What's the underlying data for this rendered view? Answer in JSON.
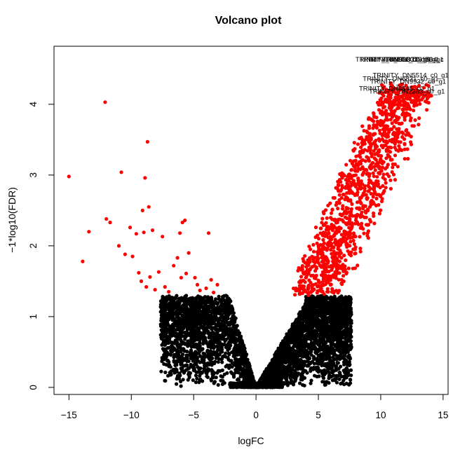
{
  "chart_data": {
    "type": "scatter",
    "title": "Volcano plot",
    "xlabel": "logFC",
    "ylabel": "−1*log10(FDR)",
    "xlim": [
      -16.2,
      15.4
    ],
    "ylim": [
      -0.1,
      4.82
    ],
    "x_ticks": [
      -15,
      -10,
      -5,
      0,
      5,
      10,
      15
    ],
    "y_ticks": [
      0,
      1,
      2,
      3,
      4
    ],
    "grid": false,
    "legend": "none",
    "colors": {
      "significant": "#ff0000",
      "not_significant": "#000000"
    },
    "fdr_threshold_y": 1.3,
    "series": [
      {
        "color": "#ff0000",
        "points": [
          [
            -15.0,
            2.98
          ],
          [
            -13.9,
            1.78
          ],
          [
            -13.4,
            2.2
          ],
          [
            -12.1,
            4.03
          ],
          [
            -12.0,
            2.38
          ],
          [
            -11.7,
            2.33
          ],
          [
            -11.0,
            2.0
          ],
          [
            -10.8,
            3.04
          ],
          [
            -10.5,
            1.88
          ],
          [
            -10.1,
            2.26
          ],
          [
            -9.9,
            1.85
          ],
          [
            -9.6,
            2.17
          ],
          [
            -9.4,
            1.62
          ],
          [
            -9.2,
            1.5
          ],
          [
            -9.1,
            2.5
          ],
          [
            -9.0,
            2.19
          ],
          [
            -8.9,
            2.96
          ],
          [
            -8.8,
            1.42
          ],
          [
            -8.7,
            3.47
          ],
          [
            -8.6,
            2.55
          ],
          [
            -8.5,
            1.56
          ],
          [
            -8.3,
            2.22
          ],
          [
            -8.1,
            1.38
          ],
          [
            -7.8,
            1.63
          ],
          [
            -7.5,
            2.13
          ],
          [
            -7.3,
            1.42
          ],
          [
            -7.0,
            1.35
          ],
          [
            -6.6,
            1.72
          ],
          [
            -6.3,
            1.83
          ],
          [
            -6.1,
            2.18
          ],
          [
            -6.0,
            1.55
          ],
          [
            -5.9,
            2.33
          ],
          [
            -5.7,
            2.36
          ],
          [
            -5.6,
            1.61
          ],
          [
            -5.4,
            1.9
          ],
          [
            -4.9,
            1.55
          ],
          [
            -4.7,
            1.45
          ],
          [
            -4.5,
            1.37
          ],
          [
            -4.0,
            1.4
          ],
          [
            -3.8,
            2.18
          ],
          [
            -3.6,
            1.52
          ],
          [
            -3.4,
            1.34
          ],
          [
            -3.1,
            1.45
          ]
        ]
      },
      {
        "color": "#000000",
        "points": []
      }
    ],
    "point_labels": [
      {
        "x": 12.0,
        "y": 4.63,
        "text": "TRINITY_DN3312_c0_g1"
      },
      {
        "x": 11.5,
        "y": 4.63,
        "text": "TRINITY_DN50807_c0_g1"
      },
      {
        "x": 12.6,
        "y": 4.63,
        "text": "TRINITY_DN1564_c"
      },
      {
        "x": 11.0,
        "y": 4.63,
        "text": "TRINITY_DN2911_c0_g1"
      },
      {
        "x": 12.4,
        "y": 4.41,
        "text": "TRINITY_DN5514_c0_g1"
      },
      {
        "x": 11.6,
        "y": 4.36,
        "text": "TRINITY_DN6831_c0_g1"
      },
      {
        "x": 12.2,
        "y": 4.32,
        "text": "TRINITY_DN9932_c0_g1"
      },
      {
        "x": 11.3,
        "y": 4.22,
        "text": "TRINITY_DN8845_c0_g1"
      },
      {
        "x": 12.1,
        "y": 4.18,
        "text": "TRINITY_DN2253_c0_g1"
      }
    ]
  }
}
